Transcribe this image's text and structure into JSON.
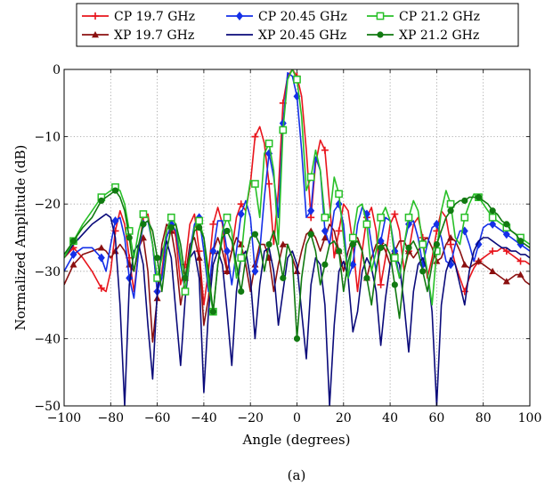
{
  "chart_data": {
    "type": "line",
    "caption": "(a)",
    "xlabel": "Angle (degrees)",
    "ylabel": "Normalized Amplitude (dB)",
    "xlim": [
      -100,
      100
    ],
    "ylim": [
      -50,
      0
    ],
    "xticks": [
      -100,
      -80,
      -60,
      -40,
      -20,
      0,
      20,
      40,
      60,
      80,
      100
    ],
    "yticks": [
      -50,
      -40,
      -30,
      -20,
      -10,
      0
    ],
    "xtick_labels": [
      "−100",
      "−80",
      "−60",
      "−40",
      "−20",
      "0",
      "20",
      "40",
      "60",
      "80",
      "100"
    ],
    "ytick_labels": [
      "−50",
      "−40",
      "−30",
      "−20",
      "−10",
      "0"
    ],
    "grid": true,
    "legend_position": "top-center",
    "series": [
      {
        "name": "CP 19.7 GHz",
        "color": "#e8141c",
        "marker": "plus",
        "marker_every": 3,
        "x": [
          -100,
          -96,
          -92,
          -88,
          -84,
          -82,
          -80,
          -78,
          -76,
          -74,
          -72,
          -70,
          -68,
          -66,
          -64,
          -62,
          -60,
          -58,
          -56,
          -54,
          -52,
          -50,
          -48,
          -46,
          -44,
          -42,
          -40,
          -38,
          -36,
          -34,
          -32,
          -30,
          -28,
          -26,
          -24,
          -22,
          -20,
          -18,
          -16,
          -14,
          -12,
          -10,
          -8,
          -6,
          -4,
          -2,
          0,
          2,
          4,
          6,
          8,
          10,
          12,
          14,
          16,
          18,
          20,
          22,
          24,
          26,
          28,
          30,
          32,
          34,
          36,
          38,
          40,
          42,
          44,
          46,
          48,
          50,
          52,
          54,
          56,
          58,
          60,
          62,
          64,
          66,
          68,
          70,
          72,
          74,
          76,
          78,
          80,
          82,
          84,
          86,
          88,
          90,
          92,
          94,
          96,
          98,
          100
        ],
        "y": [
          -28,
          -26.5,
          -28,
          -30,
          -32.5,
          -33,
          -30,
          -24,
          -21,
          -23,
          -28,
          -33,
          -27,
          -22,
          -21.5,
          -26,
          -33,
          -30,
          -24,
          -22,
          -25,
          -32,
          -29,
          -23,
          -21.5,
          -27,
          -35,
          -30,
          -23,
          -20.5,
          -23,
          -30,
          -27,
          -22,
          -20,
          -21,
          -17,
          -10,
          -8.5,
          -11,
          -17,
          -26,
          -18,
          -5,
          -1,
          0,
          -1,
          -4,
          -12,
          -22,
          -14,
          -10.5,
          -12,
          -20,
          -28,
          -24,
          -20,
          -21,
          -26,
          -33,
          -27,
          -22,
          -20.5,
          -24,
          -32,
          -28,
          -23,
          -21.5,
          -24,
          -30,
          -27,
          -23,
          -22,
          -25,
          -31,
          -28,
          -24,
          -21,
          -22,
          -26,
          -29,
          -31,
          -33,
          -31,
          -29.5,
          -28.5,
          -28,
          -27.5,
          -27,
          -27,
          -26.5,
          -27,
          -27.5,
          -28,
          -28.5,
          -28.5,
          -29
        ]
      },
      {
        "name": "XP 19.7 GHz",
        "color": "#8b1010",
        "marker": "triangle",
        "marker_every": 3,
        "x": [
          -100,
          -96,
          -92,
          -88,
          -84,
          -82,
          -80,
          -78,
          -76,
          -74,
          -72,
          -70,
          -68,
          -66,
          -64,
          -62,
          -60,
          -58,
          -56,
          -54,
          -52,
          -50,
          -48,
          -46,
          -44,
          -42,
          -40,
          -38,
          -36,
          -34,
          -32,
          -30,
          -28,
          -26,
          -24,
          -22,
          -20,
          -18,
          -16,
          -14,
          -12,
          -10,
          -8,
          -6,
          -4,
          -2,
          0,
          2,
          4,
          6,
          8,
          10,
          12,
          14,
          16,
          18,
          20,
          22,
          24,
          26,
          28,
          30,
          32,
          34,
          36,
          38,
          40,
          42,
          44,
          46,
          48,
          50,
          52,
          54,
          56,
          58,
          60,
          62,
          64,
          66,
          68,
          70,
          72,
          74,
          76,
          78,
          80,
          82,
          84,
          86,
          88,
          90,
          92,
          94,
          96,
          98,
          100
        ],
        "y": [
          -32,
          -29,
          -27.5,
          -27,
          -26.5,
          -27,
          -28,
          -27,
          -26,
          -27,
          -29,
          -30,
          -26.5,
          -25,
          -30,
          -40.5,
          -34,
          -26,
          -23,
          -24,
          -28,
          -35,
          -31,
          -26,
          -25,
          -28,
          -38,
          -34,
          -27,
          -25,
          -27,
          -30,
          -27,
          -25,
          -26,
          -29,
          -33,
          -29,
          -26,
          -26,
          -28,
          -33,
          -29,
          -26,
          -26,
          -28,
          -30,
          -27,
          -24.5,
          -24,
          -25,
          -27,
          -25,
          -23,
          -24,
          -27,
          -30,
          -27,
          -25,
          -25,
          -27,
          -31,
          -28,
          -26,
          -25.5,
          -27,
          -29,
          -27,
          -25.5,
          -25.5,
          -27,
          -28,
          -27,
          -25.5,
          -25,
          -26.5,
          -28.5,
          -28,
          -26,
          -25,
          -25.5,
          -27,
          -29,
          -29.5,
          -29,
          -28.5,
          -29,
          -29.5,
          -30,
          -30.5,
          -31,
          -31.5,
          -31,
          -30.5,
          -30.5,
          -31.5,
          -32
        ]
      },
      {
        "name": "CP 20.45 GHz",
        "color": "#1530e8",
        "marker": "diamond",
        "marker_every": 3,
        "x": [
          -100,
          -96,
          -92,
          -88,
          -84,
          -82,
          -80,
          -78,
          -76,
          -74,
          -72,
          -70,
          -68,
          -66,
          -64,
          -62,
          -60,
          -58,
          -56,
          -54,
          -52,
          -50,
          -48,
          -46,
          -44,
          -42,
          -40,
          -38,
          -36,
          -34,
          -32,
          -30,
          -28,
          -26,
          -24,
          -22,
          -20,
          -18,
          -16,
          -14,
          -12,
          -10,
          -8,
          -6,
          -4,
          -2,
          0,
          2,
          4,
          6,
          8,
          10,
          12,
          14,
          16,
          18,
          20,
          22,
          24,
          26,
          28,
          30,
          32,
          34,
          36,
          38,
          40,
          42,
          44,
          46,
          48,
          50,
          52,
          54,
          56,
          58,
          60,
          62,
          64,
          66,
          68,
          70,
          72,
          74,
          76,
          78,
          80,
          82,
          84,
          86,
          88,
          90,
          92,
          94,
          96,
          98,
          100
        ],
        "y": [
          -30,
          -27.5,
          -26.5,
          -26.5,
          -28,
          -30,
          -26,
          -22.5,
          -22,
          -25,
          -31,
          -34,
          -27,
          -23,
          -22.5,
          -26,
          -33,
          -31,
          -25,
          -23,
          -24,
          -29,
          -33,
          -27,
          -23,
          -22,
          -27,
          -33,
          -27,
          -22.5,
          -22.5,
          -27,
          -32,
          -27,
          -21.5,
          -19.5,
          -22,
          -30,
          -27,
          -19,
          -12.5,
          -16,
          -22,
          -8,
          -0.5,
          -1,
          -4,
          -12,
          -22,
          -21,
          -13,
          -15,
          -24,
          -26,
          -21,
          -20,
          -23,
          -31,
          -29,
          -23,
          -20.5,
          -21.5,
          -26,
          -30,
          -25.5,
          -22,
          -22.5,
          -27,
          -31,
          -26,
          -23,
          -22.5,
          -25,
          -29,
          -26,
          -23.5,
          -23,
          -25,
          -28.5,
          -29,
          -26,
          -24,
          -24,
          -26,
          -28.5,
          -26,
          -23.5,
          -23,
          -23,
          -23.5,
          -24,
          -24.5,
          -25,
          -25.5,
          -26,
          -26.5,
          -27
        ]
      },
      {
        "name": "XP 20.45 GHz",
        "color": "#0a0a7a",
        "marker": "none",
        "marker_every": 0,
        "x": [
          -100,
          -96,
          -92,
          -88,
          -84,
          -82,
          -80,
          -78,
          -76,
          -74,
          -72,
          -70,
          -68,
          -66,
          -64,
          -62,
          -60,
          -58,
          -56,
          -54,
          -52,
          -50,
          -48,
          -46,
          -44,
          -42,
          -40,
          -38,
          -36,
          -34,
          -32,
          -30,
          -28,
          -26,
          -24,
          -22,
          -20,
          -18,
          -16,
          -14,
          -12,
          -10,
          -8,
          -6,
          -4,
          -2,
          0,
          2,
          4,
          6,
          8,
          10,
          12,
          14,
          16,
          18,
          20,
          22,
          24,
          26,
          28,
          30,
          32,
          34,
          36,
          38,
          40,
          42,
          44,
          46,
          48,
          50,
          52,
          54,
          56,
          58,
          60,
          62,
          64,
          66,
          68,
          70,
          72,
          74,
          76,
          78,
          80,
          82,
          84,
          86,
          88,
          90,
          92,
          94,
          96,
          98,
          100
        ],
        "y": [
          -28,
          -26,
          -24.5,
          -23,
          -22,
          -21.5,
          -22,
          -25,
          -35,
          -50,
          -32,
          -27,
          -26,
          -29,
          -38,
          -46,
          -33,
          -27,
          -25.5,
          -28,
          -36,
          -44,
          -34,
          -28,
          -27,
          -31,
          -48,
          -36,
          -29,
          -27,
          -29,
          -36,
          -44,
          -33,
          -28,
          -27,
          -31,
          -40,
          -32,
          -27,
          -26.5,
          -30,
          -38,
          -33,
          -28,
          -27,
          -29,
          -36,
          -43,
          -32,
          -28,
          -29,
          -35,
          -50,
          -38,
          -30,
          -28.5,
          -31,
          -39,
          -36,
          -30,
          -28,
          -29.5,
          -33,
          -41,
          -34,
          -29,
          -27.5,
          -29,
          -35,
          -42,
          -33,
          -29,
          -28,
          -30,
          -36,
          -50,
          -35,
          -30,
          -28,
          -29,
          -32,
          -35,
          -30,
          -27,
          -25.5,
          -25,
          -25,
          -25.5,
          -26,
          -26.5,
          -26.5,
          -27,
          -27,
          -27.5,
          -27.5,
          -28
        ]
      },
      {
        "name": "CP 21.2 GHz",
        "color": "#28c028",
        "marker": "square",
        "marker_every": 3,
        "x": [
          -100,
          -96,
          -92,
          -88,
          -84,
          -82,
          -80,
          -78,
          -76,
          -74,
          -72,
          -70,
          -68,
          -66,
          -64,
          -62,
          -60,
          -58,
          -56,
          -54,
          -52,
          -50,
          -48,
          -46,
          -44,
          -42,
          -40,
          -38,
          -36,
          -34,
          -32,
          -30,
          -28,
          -26,
          -24,
          -22,
          -20,
          -18,
          -16,
          -14,
          -12,
          -10,
          -8,
          -6,
          -4,
          -2,
          0,
          2,
          4,
          6,
          8,
          10,
          12,
          14,
          16,
          18,
          20,
          22,
          24,
          26,
          28,
          30,
          32,
          34,
          36,
          38,
          40,
          42,
          44,
          46,
          48,
          50,
          52,
          54,
          56,
          58,
          60,
          62,
          64,
          66,
          68,
          70,
          72,
          74,
          76,
          78,
          80,
          82,
          84,
          86,
          88,
          90,
          92,
          94,
          96,
          98,
          100
        ],
        "y": [
          -28,
          -25.5,
          -23,
          -21,
          -19,
          -18.5,
          -18,
          -17.5,
          -18,
          -20,
          -24,
          -28,
          -24,
          -21.5,
          -22,
          -26,
          -31,
          -28,
          -24,
          -22,
          -23,
          -28,
          -33,
          -28,
          -23.5,
          -22.5,
          -25,
          -32,
          -36,
          -29,
          -24,
          -22,
          -24,
          -31,
          -28,
          -21,
          -16.5,
          -17,
          -22,
          -12.5,
          -11,
          -15,
          -26,
          -9,
          -1.5,
          0,
          -1.5,
          -7,
          -18,
          -16,
          -12,
          -15,
          -22,
          -22,
          -16,
          -18.5,
          -25,
          -31,
          -25,
          -20.5,
          -20,
          -23,
          -30,
          -27,
          -22,
          -20.5,
          -22.5,
          -28,
          -31,
          -26,
          -22,
          -19.5,
          -21,
          -26,
          -30,
          -35,
          -27,
          -21,
          -18,
          -20,
          -25,
          -26,
          -22,
          -20,
          -18.5,
          -19,
          -20,
          -21,
          -22,
          -22.5,
          -23,
          -23.5,
          -24,
          -24.5,
          -25,
          -25.5,
          -26
        ]
      },
      {
        "name": "XP 21.2 GHz",
        "color": "#117a11",
        "marker": "circle",
        "marker_every": 3,
        "x": [
          -100,
          -96,
          -92,
          -88,
          -84,
          -82,
          -80,
          -78,
          -76,
          -74,
          -72,
          -70,
          -68,
          -66,
          -64,
          -62,
          -60,
          -58,
          -56,
          -54,
          -52,
          -50,
          -48,
          -46,
          -44,
          -42,
          -40,
          -38,
          -36,
          -34,
          -32,
          -30,
          -28,
          -26,
          -24,
          -22,
          -20,
          -18,
          -16,
          -14,
          -12,
          -10,
          -8,
          -6,
          -4,
          -2,
          0,
          2,
          4,
          6,
          8,
          10,
          12,
          14,
          16,
          18,
          20,
          22,
          24,
          26,
          28,
          30,
          32,
          34,
          36,
          38,
          40,
          42,
          44,
          46,
          48,
          50,
          52,
          54,
          56,
          58,
          60,
          62,
          64,
          66,
          68,
          70,
          72,
          74,
          76,
          78,
          80,
          82,
          84,
          86,
          88,
          90,
          92,
          94,
          96,
          98,
          100
        ],
        "y": [
          -27.5,
          -25.5,
          -23.5,
          -22,
          -19.5,
          -19,
          -18.5,
          -18,
          -19,
          -21,
          -25,
          -30,
          -26,
          -23,
          -22.5,
          -24,
          -28,
          -33,
          -27,
          -23.5,
          -23,
          -26,
          -31,
          -27.5,
          -24,
          -23.5,
          -25,
          -30,
          -36,
          -29,
          -25,
          -24,
          -25.5,
          -29,
          -33,
          -28,
          -25,
          -24.5,
          -26,
          -30,
          -26,
          -24,
          -27,
          -31,
          -26,
          -28,
          -40,
          -31,
          -26,
          -24.5,
          -27,
          -32,
          -29,
          -26,
          -25.5,
          -27,
          -33,
          -28.5,
          -26,
          -25.5,
          -27,
          -31,
          -35,
          -29.5,
          -26.5,
          -26,
          -27.5,
          -32,
          -37,
          -30,
          -26.5,
          -25.5,
          -27,
          -30,
          -33,
          -29,
          -26,
          -24,
          -22,
          -21,
          -20,
          -19.5,
          -19.5,
          -19,
          -19,
          -19,
          -19.5,
          -20,
          -21,
          -21.5,
          -22.5,
          -23,
          -24,
          -24.5,
          -25.5,
          -26,
          -26.5
        ]
      }
    ]
  }
}
